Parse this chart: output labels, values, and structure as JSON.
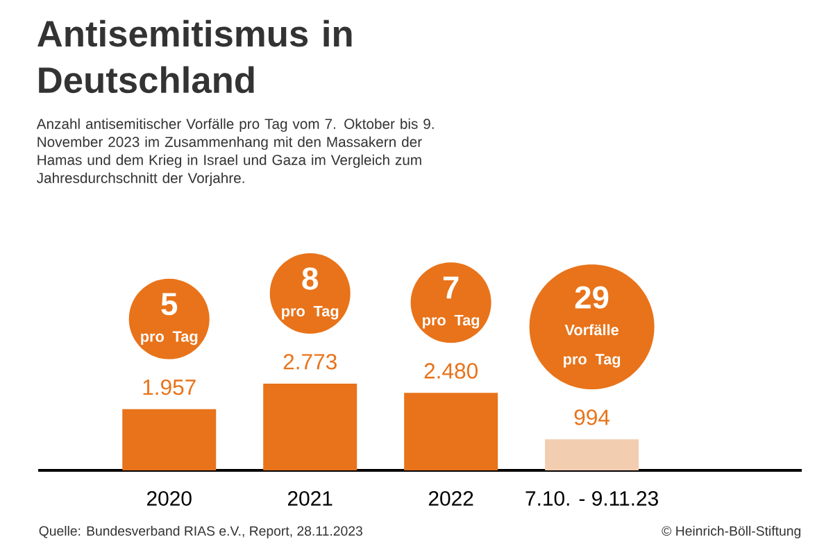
{
  "chart_data": {
    "type": "bar",
    "title": "Antisemitismus in Deutschland",
    "subtitle": "Anzahl antisemitischer Vorfälle pro Tag vom 7. Oktober bis 9. November 2023 im Zusammenhang mit den Massakern der Hamas und dem Krieg in Israel und Gaza im Vergleich zum Jahresdurchschnitt der Vorjahre.",
    "categories": [
      "2020",
      "2021",
      "2022",
      "7.10. - 9.11.23"
    ],
    "values": [
      1957,
      2773,
      2480,
      994
    ],
    "colors": [
      "#e8731a",
      "#e8731a",
      "#e8731a",
      "#f3cdb0"
    ],
    "value_labels": [
      "1.957",
      "2.773",
      "2.480",
      "994"
    ],
    "annotations": [
      "5",
      "pro Tag",
      "8",
      "pro Tag",
      "7",
      "pro Tag",
      "29",
      "Vorfälle pro Tag",
      "Quelle: Bundesverband RIAS e.V., Report, 28.11.2023",
      "© Heinrich-Böll-Stiftung"
    ]
  }
}
